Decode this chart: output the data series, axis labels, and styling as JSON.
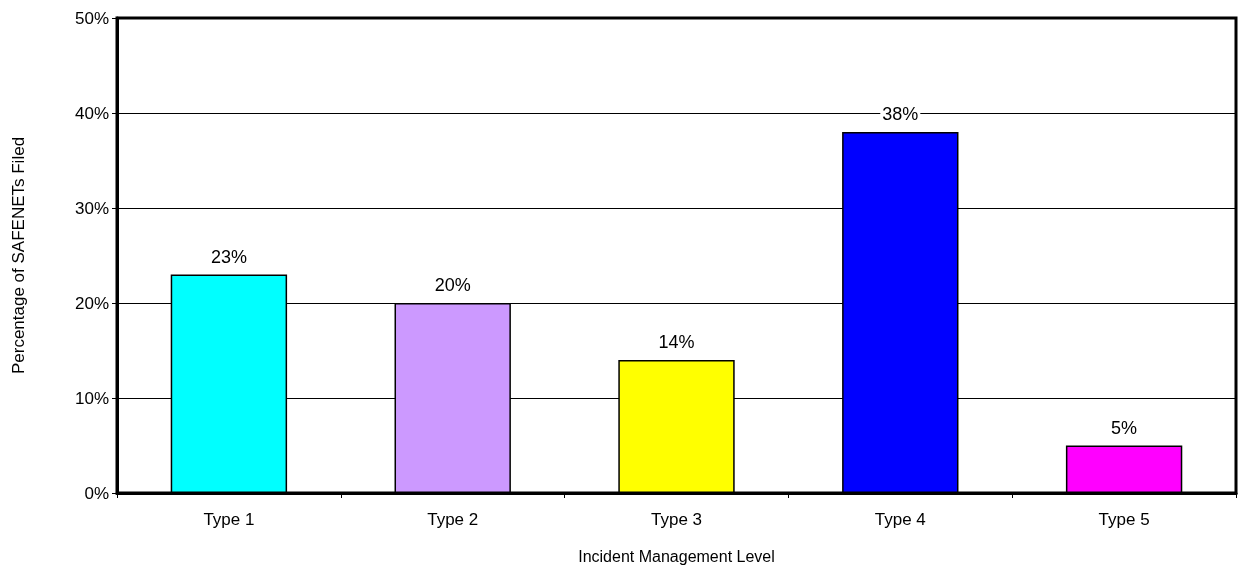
{
  "chart_data": {
    "type": "bar",
    "xlabel": "Incident Management Level",
    "ylabel": "Percentage of SAFENETs Filed",
    "categories": [
      "Type 1",
      "Type 2",
      "Type 3",
      "Type 4",
      "Type 5"
    ],
    "values": [
      23,
      20,
      14,
      38,
      5
    ],
    "colors": [
      "#00ffff",
      "#cc99ff",
      "#ffff00",
      "#0000ff",
      "#ff00ff"
    ],
    "value_labels": [
      "23%",
      "20%",
      "14%",
      "38%",
      "5%"
    ],
    "ylim": [
      0,
      50
    ],
    "yticks": [
      {
        "value": 0,
        "label": "0%"
      },
      {
        "value": 10,
        "label": "10%"
      },
      {
        "value": 20,
        "label": "20%"
      },
      {
        "value": 30,
        "label": "30%"
      },
      {
        "value": 40,
        "label": "40%"
      },
      {
        "value": 50,
        "label": "50%"
      }
    ],
    "grid": "y"
  }
}
